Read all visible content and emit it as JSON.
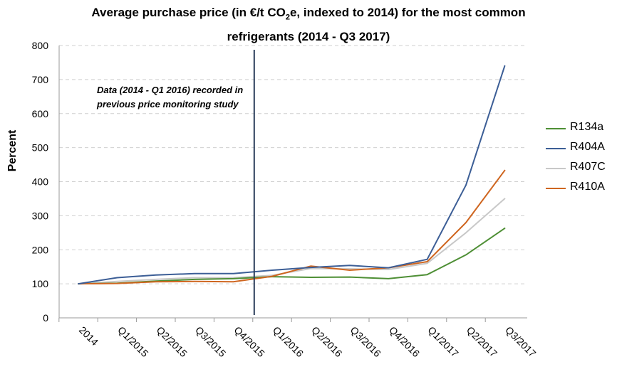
{
  "title": {
    "line1_prefix": "Average purchase price (in €/t CO",
    "line1_sub": "2",
    "line1_suffix": "e, indexed to 2014) for the most common",
    "line2": "refrigerants (2014 - Q3 2017)"
  },
  "chart_data": {
    "type": "line",
    "title": "Average purchase price (in €/t CO2e, indexed to 2014) for the most common refrigerants (2014 - Q3 2017)",
    "xlabel": "",
    "ylabel": "Percent",
    "ylim": [
      0,
      800
    ],
    "yticks": [
      0,
      100,
      200,
      300,
      400,
      500,
      600,
      700,
      800
    ],
    "categories": [
      "2014",
      "Q1/2015",
      "Q2/2015",
      "Q3/2015",
      "Q4/2015",
      "Q1/2016",
      "Q2/2016",
      "Q3/2016",
      "Q4/2016",
      "Q1/2017",
      "Q2/2017",
      "Q3/2017"
    ],
    "grid": "horizontal dashed",
    "legend_position": "right",
    "annotation": {
      "text_line1": "Data (2014 - Q1 2016) recorded in",
      "text_line2": "previous price monitoring study",
      "divider_at_category": "Q1/2016"
    },
    "series": [
      {
        "name": "R134a",
        "color": "#4e8f35",
        "values": [
          100,
          102,
          108,
          113,
          115,
          121,
          119,
          120,
          115,
          127,
          185,
          263
        ]
      },
      {
        "name": "R404A",
        "color": "#3c5e96",
        "values": [
          100,
          118,
          126,
          130,
          130,
          140,
          148,
          154,
          147,
          172,
          390,
          740
        ]
      },
      {
        "name": "R407C",
        "color": "#c8c8c8",
        "values": [
          100,
          107,
          113,
          118,
          118,
          125,
          145,
          144,
          142,
          160,
          250,
          350
        ]
      },
      {
        "name": "R410A",
        "color": "#cf6620",
        "values": [
          100,
          101,
          106,
          107,
          106,
          122,
          152,
          140,
          147,
          165,
          280,
          433
        ]
      }
    ]
  }
}
